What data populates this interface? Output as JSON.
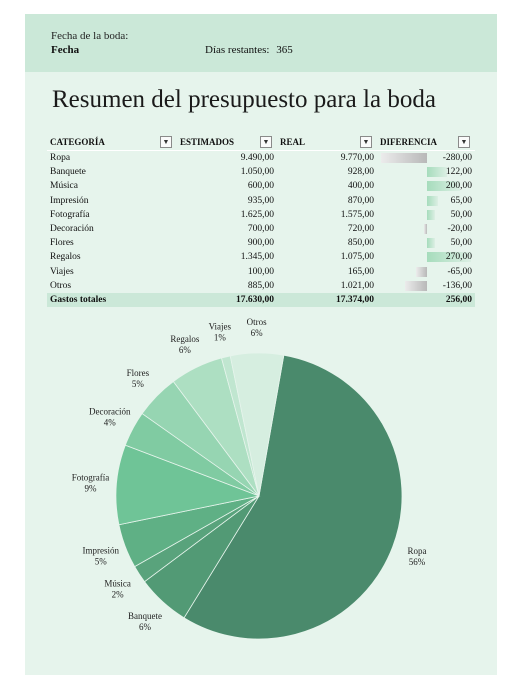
{
  "header": {
    "date_label": "Fecha de la boda:",
    "date_value": "Fecha",
    "days_label": "Días restantes:",
    "days_value": "365"
  },
  "title": "Resumen del presupuesto para la boda",
  "table": {
    "columns": [
      "CATEGORÍA",
      "ESTIMADOS",
      "REAL",
      "DIFERENCIA"
    ],
    "rows": [
      {
        "category": "Ropa",
        "estimated": "9.490,00",
        "actual": "9.770,00",
        "difference": "-280,00",
        "diff_value": -280
      },
      {
        "category": "Banquete",
        "estimated": "1.050,00",
        "actual": "928,00",
        "difference": "122,00",
        "diff_value": 122
      },
      {
        "category": "Música",
        "estimated": "600,00",
        "actual": "400,00",
        "difference": "200,00",
        "diff_value": 200
      },
      {
        "category": "Impresión",
        "estimated": "935,00",
        "actual": "870,00",
        "difference": "65,00",
        "diff_value": 65
      },
      {
        "category": "Fotografía",
        "estimated": "1.625,00",
        "actual": "1.575,00",
        "difference": "50,00",
        "diff_value": 50
      },
      {
        "category": "Decoración",
        "estimated": "700,00",
        "actual": "720,00",
        "difference": "-20,00",
        "diff_value": -20
      },
      {
        "category": "Flores",
        "estimated": "900,00",
        "actual": "850,00",
        "difference": "50,00",
        "diff_value": 50
      },
      {
        "category": "Regalos",
        "estimated": "1.345,00",
        "actual": "1.075,00",
        "difference": "270,00",
        "diff_value": 270
      },
      {
        "category": "Viajes",
        "estimated": "100,00",
        "actual": "165,00",
        "difference": "-65,00",
        "diff_value": -65
      },
      {
        "category": "Otros",
        "estimated": "885,00",
        "actual": "1.021,00",
        "difference": "-136,00",
        "diff_value": -136
      }
    ],
    "total": {
      "label": "Gastos totales",
      "estimated": "17.630,00",
      "actual": "17.374,00",
      "difference": "256,00"
    }
  },
  "chart_data": {
    "type": "pie",
    "slices": [
      {
        "name": "Ropa",
        "value": 56,
        "label": "56%",
        "color": "#4a8a6c"
      },
      {
        "name": "Banquete",
        "value": 6,
        "label": "6%",
        "color": "#529a75"
      },
      {
        "name": "Música",
        "value": 2,
        "label": "2%",
        "color": "#59a37c"
      },
      {
        "name": "Impresión",
        "value": 5,
        "label": "5%",
        "color": "#5fb085"
      },
      {
        "name": "Fotografía",
        "value": 9,
        "label": "9%",
        "color": "#6fc497"
      },
      {
        "name": "Decoración",
        "value": 4,
        "label": "4%",
        "color": "#80cba2"
      },
      {
        "name": "Flores",
        "value": 5,
        "label": "5%",
        "color": "#96d5b2"
      },
      {
        "name": "Regalos",
        "value": 6,
        "label": "6%",
        "color": "#addfc2"
      },
      {
        "name": "Viajes",
        "value": 1,
        "label": "1%",
        "color": "#c0e6d0"
      },
      {
        "name": "Otros",
        "value": 6,
        "label": "6%",
        "color": "#d6eee0"
      }
    ]
  }
}
